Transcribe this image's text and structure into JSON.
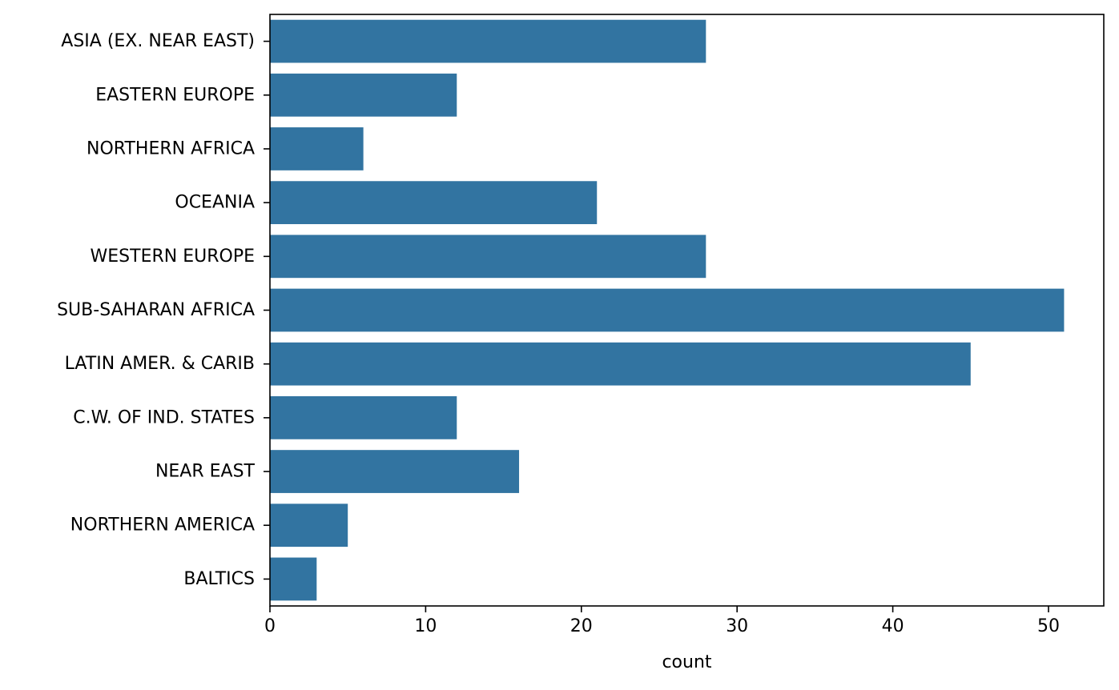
{
  "chart_data": {
    "type": "bar",
    "orientation": "horizontal",
    "categories": [
      "ASIA (EX. NEAR EAST)",
      "EASTERN EUROPE",
      "NORTHERN AFRICA",
      "OCEANIA",
      "WESTERN EUROPE",
      "SUB-SAHARAN AFRICA",
      "LATIN AMER. & CARIB",
      "C.W. OF IND. STATES",
      "NEAR EAST",
      "NORTHERN AMERICA",
      "BALTICS"
    ],
    "values": [
      28,
      12,
      6,
      21,
      28,
      51,
      45,
      12,
      16,
      5,
      3
    ],
    "xlabel": "count",
    "ylabel": "",
    "title": "",
    "xlim": [
      0,
      53.55
    ],
    "xticks": [
      0,
      10,
      20,
      30,
      40,
      50
    ],
    "grid": false,
    "legend": "none",
    "bar_color": "#3274a1"
  }
}
